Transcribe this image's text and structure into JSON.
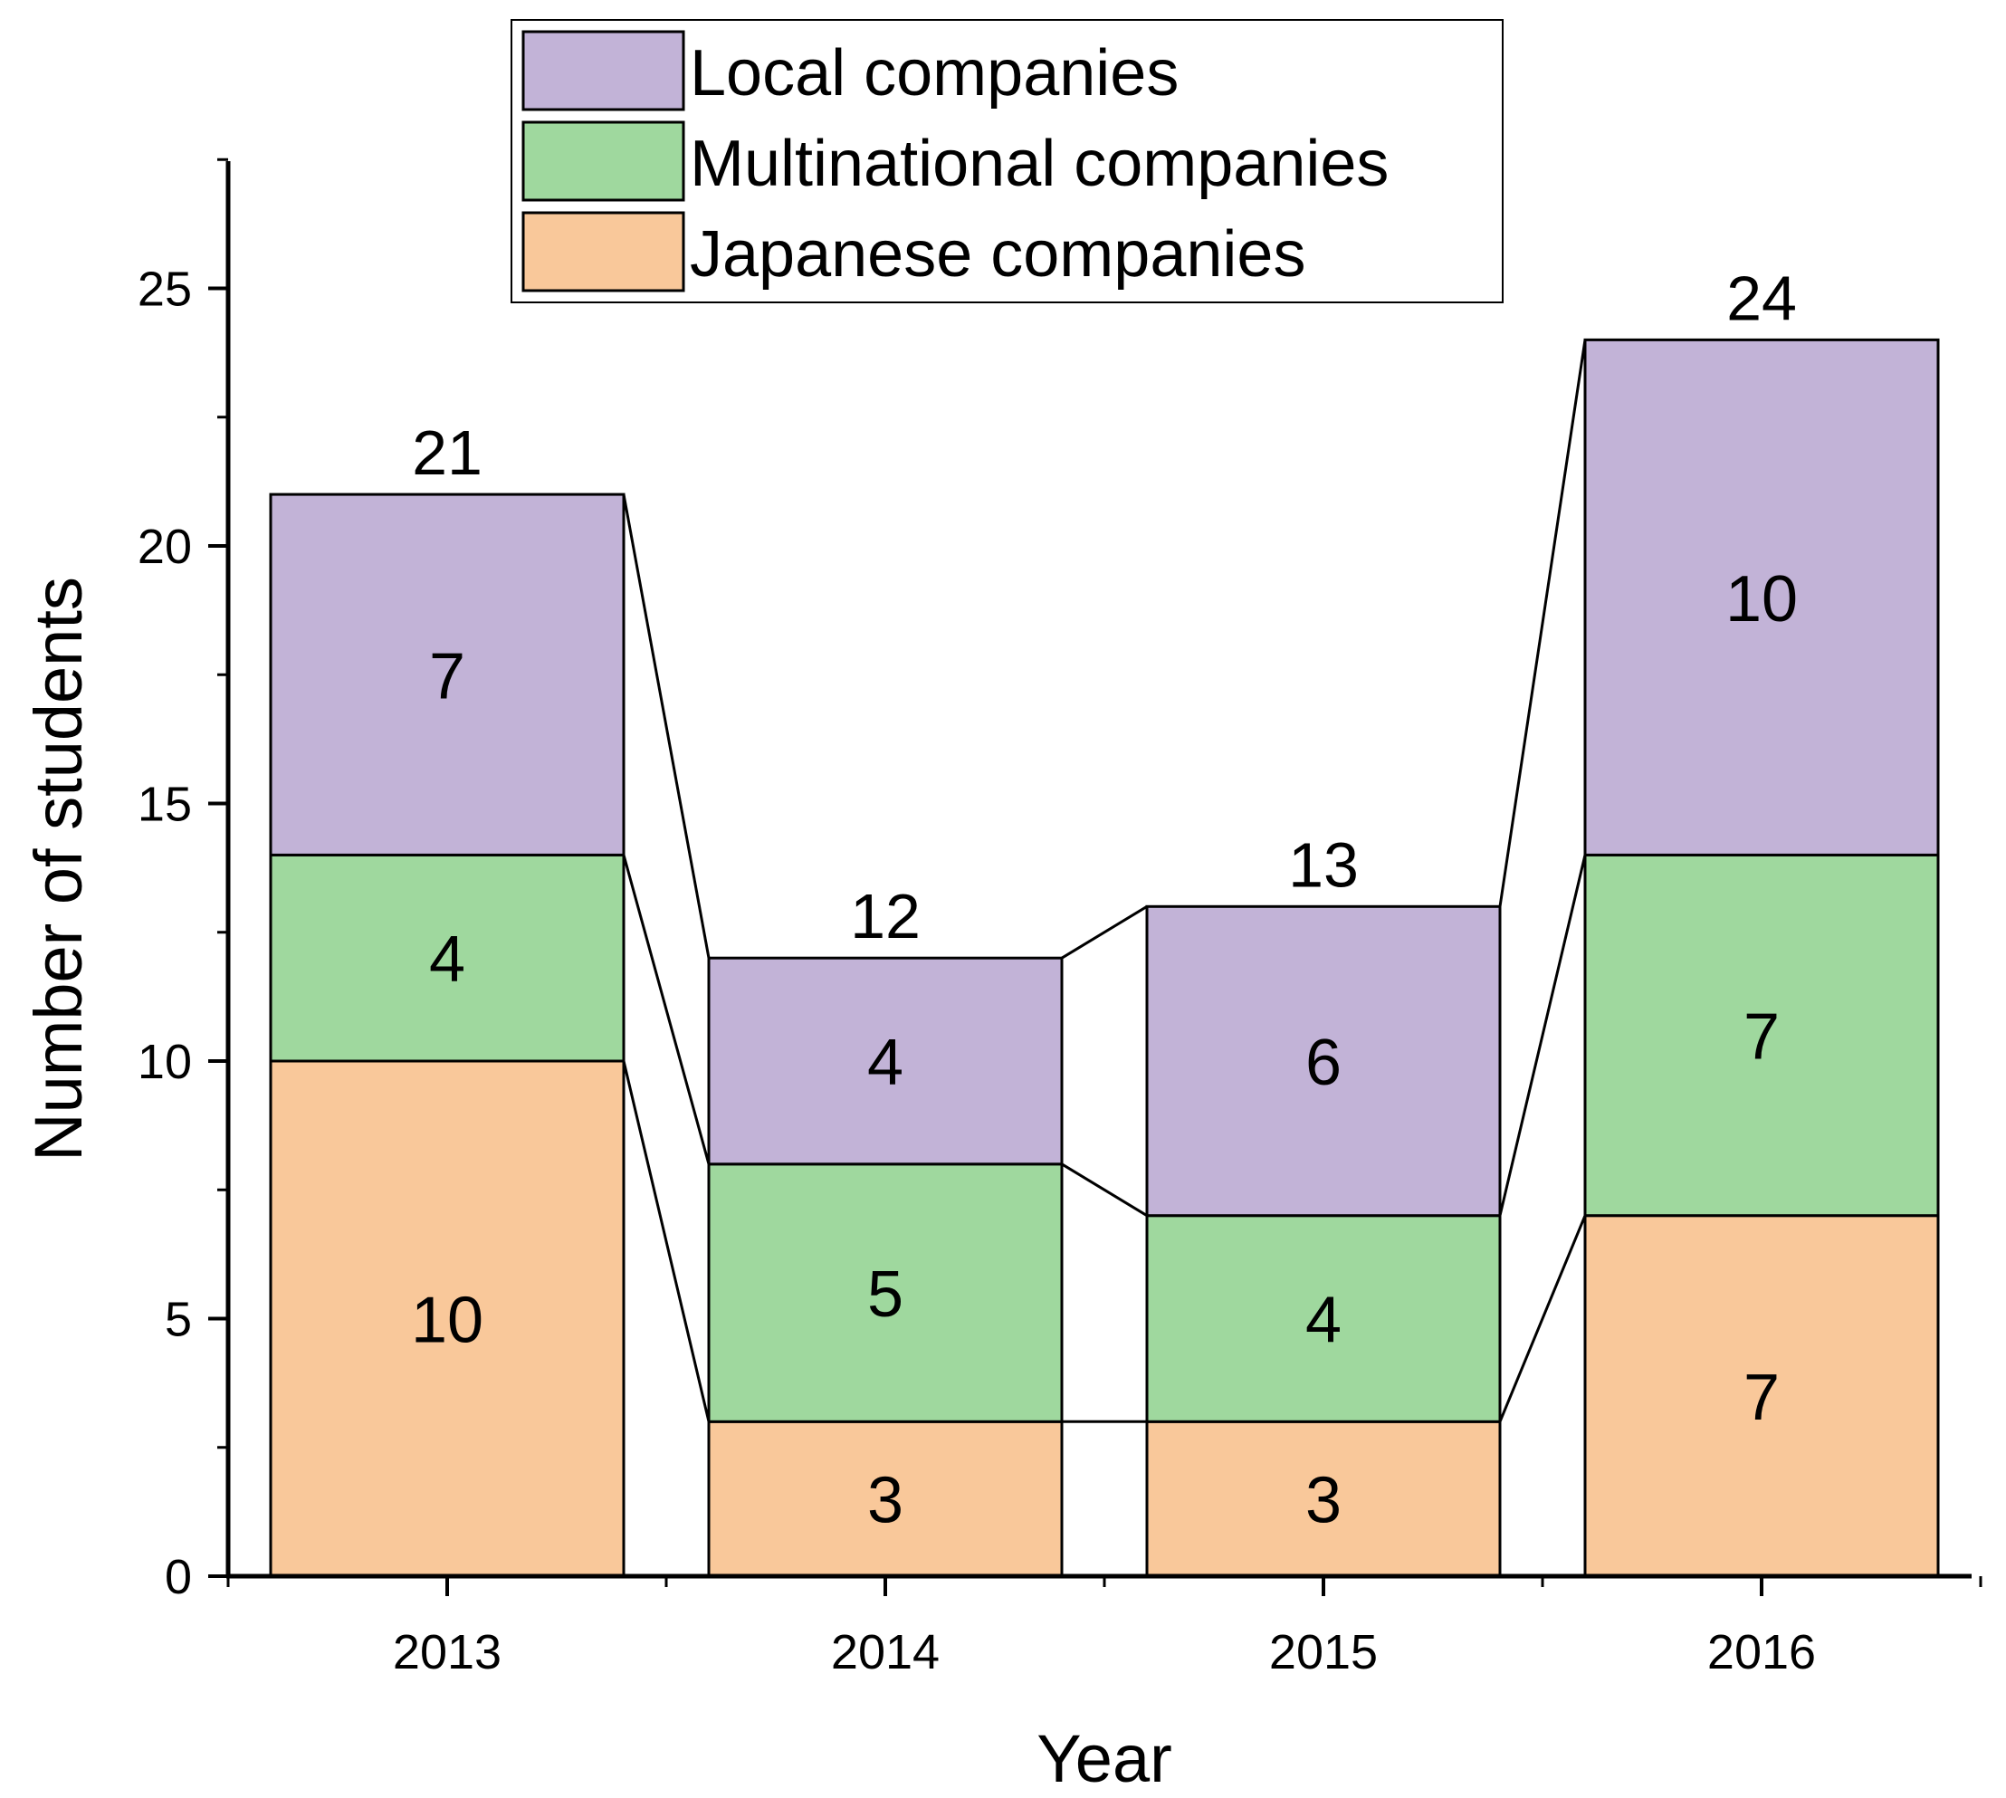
{
  "chart_data": {
    "type": "bar",
    "stacked": true,
    "categories": [
      "2013",
      "2014",
      "2015",
      "2016"
    ],
    "series": [
      {
        "name": "Japanese companies",
        "values": [
          10,
          3,
          3,
          7
        ],
        "color": "#F9C89A"
      },
      {
        "name": "Multinational companies",
        "values": [
          4,
          5,
          4,
          7
        ],
        "color": "#9FD89E"
      },
      {
        "name": "Local companies",
        "values": [
          7,
          4,
          6,
          10
        ],
        "color": "#C2B3D7"
      }
    ],
    "totals": [
      21,
      12,
      13,
      24
    ],
    "xlabel": "Year",
    "ylabel": "Number of students",
    "ylim": [
      0,
      27.5
    ],
    "yticks": [
      0,
      5,
      10,
      15,
      20,
      25
    ],
    "yticks_labels": [
      "0",
      "5",
      "10",
      "15",
      "20",
      "25"
    ],
    "legend": {
      "position": "top",
      "entries": [
        "Local companies",
        " Multinational companies",
        "Japanese companies"
      ]
    },
    "connector_lines": true,
    "grid": false
  }
}
